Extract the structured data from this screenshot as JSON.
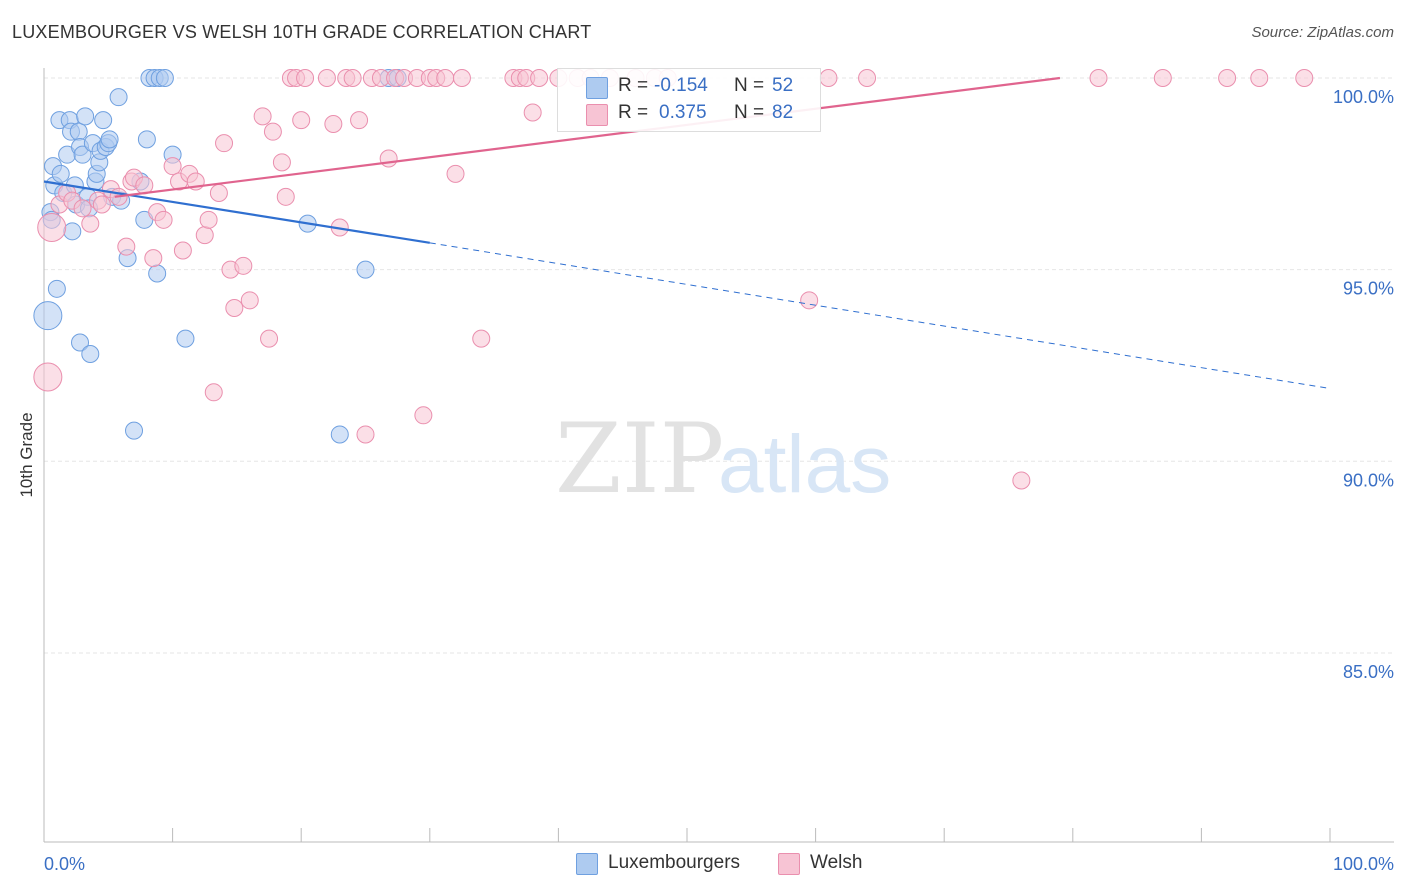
{
  "chart_data": {
    "type": "scatter",
    "title": "LUXEMBOURGER VS WELSH 10TH GRADE CORRELATION CHART",
    "source": "Source: ZipAtlas.com",
    "ylabel": "10th Grade",
    "xlabel": "",
    "x_tick_labels": [
      "0.0%",
      "100.0%"
    ],
    "y_tick_labels": [
      "100.0%",
      "95.0%",
      "90.0%",
      "85.0%"
    ],
    "xlim": [
      0,
      100
    ],
    "ylim": [
      80.5,
      100.5
    ],
    "watermark": {
      "zip": "ZIP",
      "atlas": "atlas"
    },
    "legend": [
      {
        "r_label": "R =",
        "r_value": "-0.154",
        "n_label": "N =",
        "n_value": "52"
      },
      {
        "r_label": "R =",
        "r_value": "0.375",
        "n_label": "N =",
        "n_value": "82"
      }
    ],
    "series": [
      {
        "name": "Luxembourgers",
        "color": "#6fa0e0",
        "fill": "#aecbf0",
        "line_color": "#2f6fd0",
        "trend": {
          "x_solid": [
            0,
            30
          ],
          "y_solid": [
            97.3,
            95.7
          ],
          "x_dash": [
            30,
            100
          ],
          "y_dash": [
            95.7,
            91.9
          ]
        },
        "points": [
          {
            "x": 0.3,
            "y": 93.8,
            "s": 2
          },
          {
            "x": 0.5,
            "y": 96.5,
            "s": 1
          },
          {
            "x": 0.6,
            "y": 96.3,
            "s": 1
          },
          {
            "x": 0.7,
            "y": 97.7,
            "s": 1
          },
          {
            "x": 0.8,
            "y": 97.2,
            "s": 1
          },
          {
            "x": 1.0,
            "y": 94.5,
            "s": 1
          },
          {
            "x": 1.3,
            "y": 97.5,
            "s": 1
          },
          {
            "x": 1.2,
            "y": 98.9,
            "s": 1
          },
          {
            "x": 1.5,
            "y": 97.0,
            "s": 1
          },
          {
            "x": 1.8,
            "y": 98.0,
            "s": 1
          },
          {
            "x": 2.0,
            "y": 98.9,
            "s": 1
          },
          {
            "x": 2.1,
            "y": 98.6,
            "s": 1
          },
          {
            "x": 2.2,
            "y": 96.0,
            "s": 1
          },
          {
            "x": 2.4,
            "y": 97.2,
            "s": 1
          },
          {
            "x": 2.5,
            "y": 96.7,
            "s": 1
          },
          {
            "x": 2.7,
            "y": 98.6,
            "s": 1
          },
          {
            "x": 2.8,
            "y": 98.2,
            "s": 1
          },
          {
            "x": 3.0,
            "y": 98.0,
            "s": 1
          },
          {
            "x": 2.8,
            "y": 93.1,
            "s": 1
          },
          {
            "x": 3.2,
            "y": 99.0,
            "s": 1
          },
          {
            "x": 3.4,
            "y": 96.9,
            "s": 1
          },
          {
            "x": 3.5,
            "y": 96.6,
            "s": 1
          },
          {
            "x": 3.6,
            "y": 92.8,
            "s": 1
          },
          {
            "x": 3.8,
            "y": 98.3,
            "s": 1
          },
          {
            "x": 4.0,
            "y": 97.3,
            "s": 1
          },
          {
            "x": 4.1,
            "y": 97.5,
            "s": 1
          },
          {
            "x": 4.3,
            "y": 97.8,
            "s": 1
          },
          {
            "x": 4.4,
            "y": 98.1,
            "s": 1
          },
          {
            "x": 4.6,
            "y": 98.9,
            "s": 1
          },
          {
            "x": 4.8,
            "y": 98.2,
            "s": 1
          },
          {
            "x": 5.0,
            "y": 98.3,
            "s": 1
          },
          {
            "x": 5.1,
            "y": 98.4,
            "s": 1
          },
          {
            "x": 5.3,
            "y": 96.9,
            "s": 1
          },
          {
            "x": 5.8,
            "y": 99.5,
            "s": 1
          },
          {
            "x": 6.0,
            "y": 96.8,
            "s": 1
          },
          {
            "x": 6.5,
            "y": 95.3,
            "s": 1
          },
          {
            "x": 7.0,
            "y": 90.8,
            "s": 1
          },
          {
            "x": 7.5,
            "y": 97.3,
            "s": 1
          },
          {
            "x": 7.8,
            "y": 96.3,
            "s": 1
          },
          {
            "x": 8.0,
            "y": 98.4,
            "s": 1
          },
          {
            "x": 8.2,
            "y": 100.0,
            "s": 1
          },
          {
            "x": 8.6,
            "y": 100.0,
            "s": 1
          },
          {
            "x": 8.8,
            "y": 94.9,
            "s": 1
          },
          {
            "x": 9.0,
            "y": 100.0,
            "s": 1
          },
          {
            "x": 9.4,
            "y": 100.0,
            "s": 1
          },
          {
            "x": 10.0,
            "y": 98.0,
            "s": 1
          },
          {
            "x": 11.0,
            "y": 93.2,
            "s": 1
          },
          {
            "x": 20.5,
            "y": 96.2,
            "s": 1
          },
          {
            "x": 23.0,
            "y": 90.7,
            "s": 1
          },
          {
            "x": 25.0,
            "y": 95.0,
            "s": 1
          },
          {
            "x": 26.8,
            "y": 100.0,
            "s": 1
          },
          {
            "x": 27.5,
            "y": 100.0,
            "s": 1
          }
        ]
      },
      {
        "name": "Welsh",
        "color": "#ea8fae",
        "fill": "#f7c4d4",
        "line_color": "#e0648e",
        "trend": {
          "x_solid": [
            5.5,
            79
          ],
          "y_solid": [
            96.9,
            100.0
          ]
        },
        "points": [
          {
            "x": 0.3,
            "y": 92.2,
            "s": 2
          },
          {
            "x": 0.6,
            "y": 96.1,
            "s": 2
          },
          {
            "x": 1.2,
            "y": 96.7,
            "s": 1
          },
          {
            "x": 1.8,
            "y": 97.0,
            "s": 1
          },
          {
            "x": 2.2,
            "y": 96.8,
            "s": 1
          },
          {
            "x": 3.0,
            "y": 96.6,
            "s": 1
          },
          {
            "x": 3.6,
            "y": 96.2,
            "s": 1
          },
          {
            "x": 4.2,
            "y": 96.8,
            "s": 1
          },
          {
            "x": 4.5,
            "y": 96.7,
            "s": 1
          },
          {
            "x": 5.2,
            "y": 97.1,
            "s": 1
          },
          {
            "x": 5.8,
            "y": 96.9,
            "s": 1
          },
          {
            "x": 6.4,
            "y": 95.6,
            "s": 1
          },
          {
            "x": 6.8,
            "y": 97.3,
            "s": 1
          },
          {
            "x": 7.0,
            "y": 97.4,
            "s": 1
          },
          {
            "x": 7.8,
            "y": 97.2,
            "s": 1
          },
          {
            "x": 8.5,
            "y": 95.3,
            "s": 1
          },
          {
            "x": 8.8,
            "y": 96.5,
            "s": 1
          },
          {
            "x": 9.3,
            "y": 96.3,
            "s": 1
          },
          {
            "x": 10.0,
            "y": 97.7,
            "s": 1
          },
          {
            "x": 10.5,
            "y": 97.3,
            "s": 1
          },
          {
            "x": 10.8,
            "y": 95.5,
            "s": 1
          },
          {
            "x": 11.3,
            "y": 97.5,
            "s": 1
          },
          {
            "x": 11.8,
            "y": 97.3,
            "s": 1
          },
          {
            "x": 12.5,
            "y": 95.9,
            "s": 1
          },
          {
            "x": 12.8,
            "y": 96.3,
            "s": 1
          },
          {
            "x": 13.2,
            "y": 91.8,
            "s": 1
          },
          {
            "x": 13.6,
            "y": 97.0,
            "s": 1
          },
          {
            "x": 14.0,
            "y": 98.3,
            "s": 1
          },
          {
            "x": 14.5,
            "y": 95.0,
            "s": 1
          },
          {
            "x": 14.8,
            "y": 94.0,
            "s": 1
          },
          {
            "x": 15.5,
            "y": 95.1,
            "s": 1
          },
          {
            "x": 16.0,
            "y": 94.2,
            "s": 1
          },
          {
            "x": 17.0,
            "y": 99.0,
            "s": 1
          },
          {
            "x": 17.5,
            "y": 93.2,
            "s": 1
          },
          {
            "x": 17.8,
            "y": 98.6,
            "s": 1
          },
          {
            "x": 18.5,
            "y": 97.8,
            "s": 1
          },
          {
            "x": 18.8,
            "y": 96.9,
            "s": 1
          },
          {
            "x": 19.2,
            "y": 100.0,
            "s": 1
          },
          {
            "x": 19.6,
            "y": 100.0,
            "s": 1
          },
          {
            "x": 20.0,
            "y": 98.9,
            "s": 1
          },
          {
            "x": 20.3,
            "y": 100.0,
            "s": 1
          },
          {
            "x": 22.0,
            "y": 100.0,
            "s": 1
          },
          {
            "x": 22.5,
            "y": 98.8,
            "s": 1
          },
          {
            "x": 23.0,
            "y": 96.1,
            "s": 1
          },
          {
            "x": 23.5,
            "y": 100.0,
            "s": 1
          },
          {
            "x": 24.0,
            "y": 100.0,
            "s": 1
          },
          {
            "x": 24.5,
            "y": 98.9,
            "s": 1
          },
          {
            "x": 25.0,
            "y": 90.7,
            "s": 1
          },
          {
            "x": 25.5,
            "y": 100.0,
            "s": 1
          },
          {
            "x": 26.2,
            "y": 100.0,
            "s": 1
          },
          {
            "x": 26.8,
            "y": 97.9,
            "s": 1
          },
          {
            "x": 27.3,
            "y": 100.0,
            "s": 1
          },
          {
            "x": 28.0,
            "y": 100.0,
            "s": 1
          },
          {
            "x": 29.0,
            "y": 100.0,
            "s": 1
          },
          {
            "x": 29.5,
            "y": 91.2,
            "s": 1
          },
          {
            "x": 30.0,
            "y": 100.0,
            "s": 1
          },
          {
            "x": 30.5,
            "y": 100.0,
            "s": 1
          },
          {
            "x": 31.2,
            "y": 100.0,
            "s": 1
          },
          {
            "x": 32.0,
            "y": 97.5,
            "s": 1
          },
          {
            "x": 32.5,
            "y": 100.0,
            "s": 1
          },
          {
            "x": 34.0,
            "y": 93.2,
            "s": 1
          },
          {
            "x": 36.5,
            "y": 100.0,
            "s": 1
          },
          {
            "x": 37.0,
            "y": 100.0,
            "s": 1
          },
          {
            "x": 37.5,
            "y": 100.0,
            "s": 1
          },
          {
            "x": 38.0,
            "y": 99.1,
            "s": 1
          },
          {
            "x": 38.5,
            "y": 100.0,
            "s": 1
          },
          {
            "x": 40.0,
            "y": 100.0,
            "s": 1
          },
          {
            "x": 41.5,
            "y": 100.0,
            "s": 1
          },
          {
            "x": 42.5,
            "y": 100.0,
            "s": 1
          },
          {
            "x": 44.0,
            "y": 100.0,
            "s": 1
          },
          {
            "x": 46.0,
            "y": 100.0,
            "s": 1
          },
          {
            "x": 47.5,
            "y": 100.0,
            "s": 1
          },
          {
            "x": 48.5,
            "y": 100.0,
            "s": 1
          },
          {
            "x": 59.5,
            "y": 94.2,
            "s": 1
          },
          {
            "x": 61.0,
            "y": 100.0,
            "s": 1
          },
          {
            "x": 64.0,
            "y": 100.0,
            "s": 1
          },
          {
            "x": 76.0,
            "y": 89.5,
            "s": 1
          },
          {
            "x": 82.0,
            "y": 100.0,
            "s": 1
          },
          {
            "x": 87.0,
            "y": 100.0,
            "s": 1
          },
          {
            "x": 92.0,
            "y": 100.0,
            "s": 1
          },
          {
            "x": 94.5,
            "y": 100.0,
            "s": 1
          },
          {
            "x": 98.0,
            "y": 100.0,
            "s": 1
          }
        ]
      }
    ]
  }
}
